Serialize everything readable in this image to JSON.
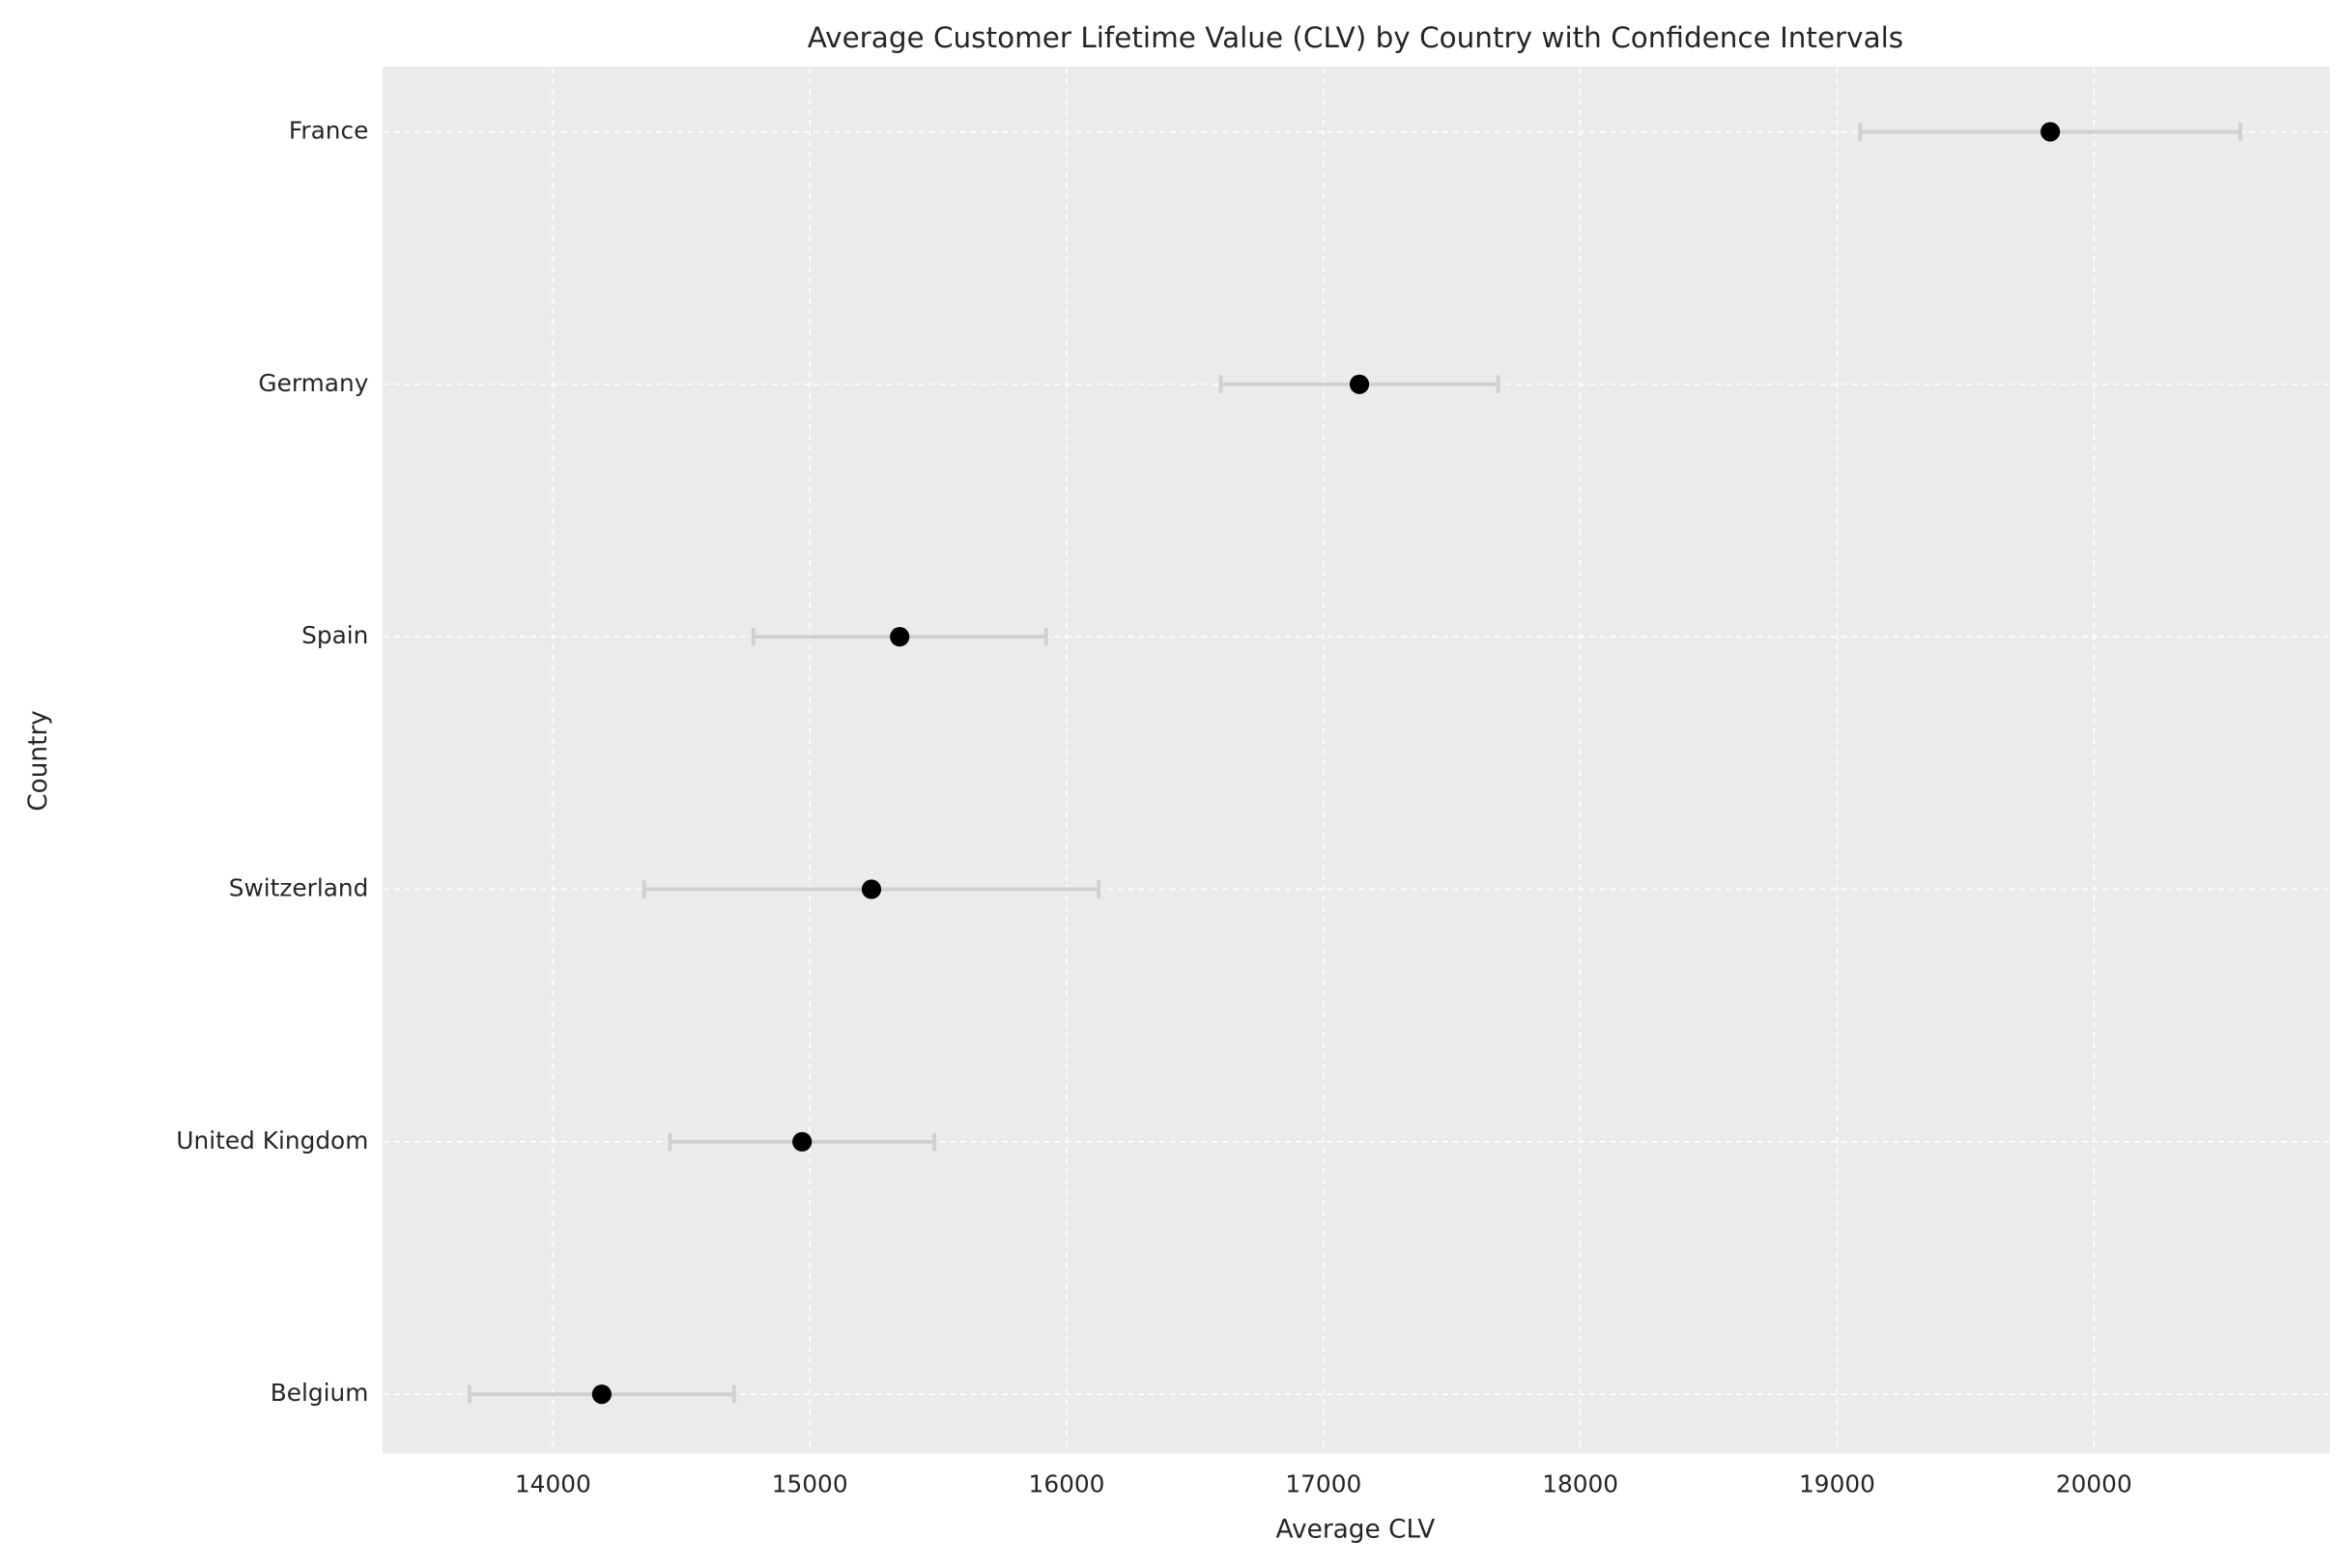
{
  "chart_data": {
    "type": "errorbar-dot",
    "title": "Average Customer Lifetime Value (CLV) by Country with Confidence Intervals",
    "x_label": "Average CLV",
    "y_label": "Country",
    "categories": [
      "Belgium",
      "United Kingdom",
      "Switzerland",
      "Spain",
      "Germany",
      "France"
    ],
    "values": [
      14190,
      14970,
      15240,
      15350,
      17140,
      19830
    ],
    "errors": [
      515,
      515,
      885,
      570,
      540,
      740
    ],
    "color": "#000000",
    "error_color": "#d0d0d0",
    "xlim": [
      13340,
      20915
    ],
    "xticks": [
      14000,
      15000,
      16000,
      17000,
      18000,
      19000,
      20000
    ],
    "grid": true
  }
}
